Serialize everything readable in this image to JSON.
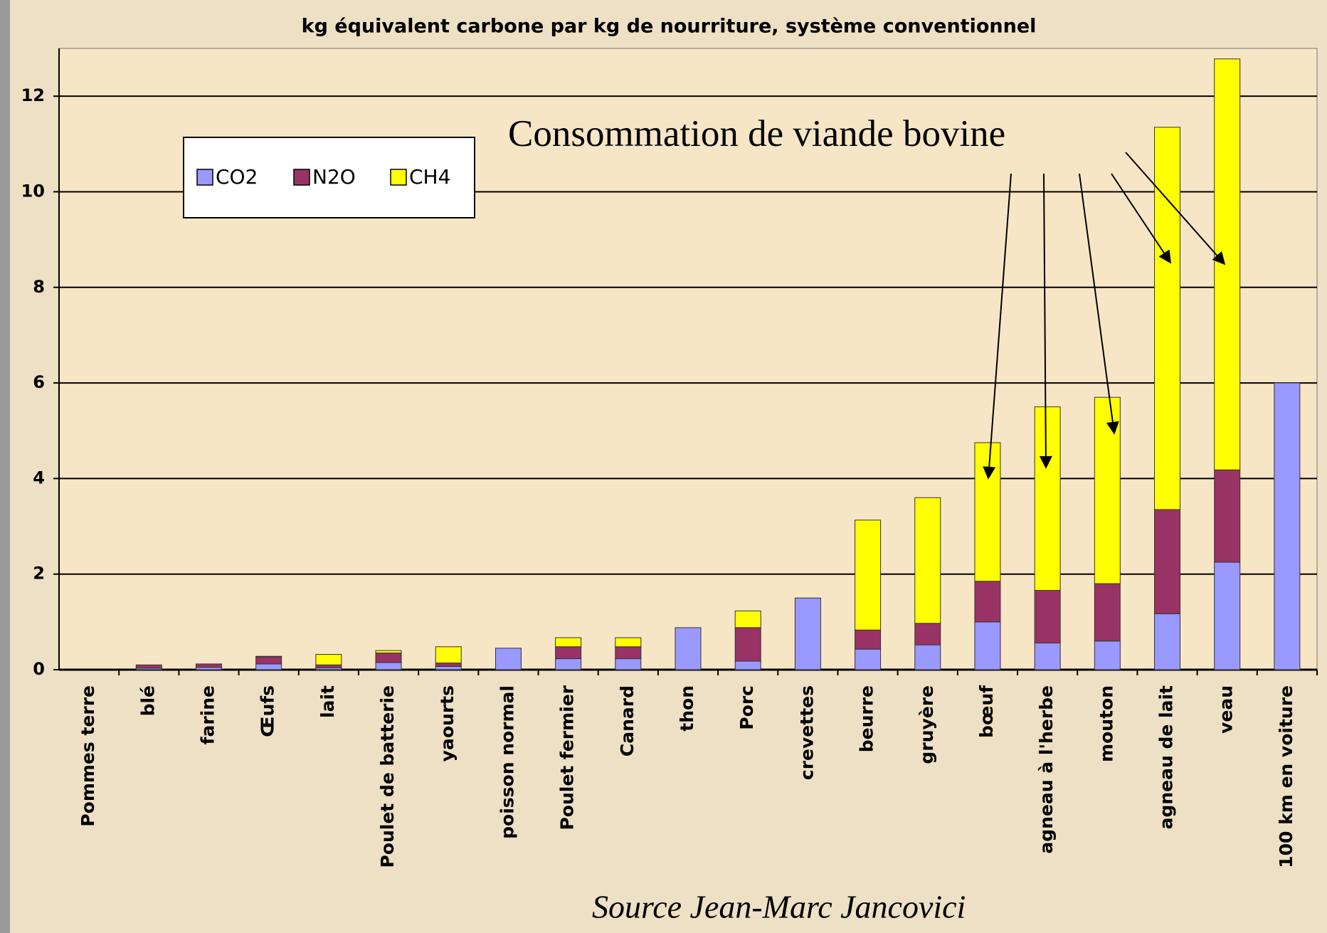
{
  "chart_data": {
    "type": "stacked_bar",
    "title": "kg équivalent carbone par kg de nourriture, système conventionnel",
    "categories": [
      "Pommes terre",
      "blé",
      "farine",
      "Œufs",
      "lait",
      "Poulet de batterie",
      "yaourts",
      "poisson normal",
      "Poulet fermier",
      "Canard",
      "thon",
      "Porc",
      "crevettes",
      "beurre",
      "gruyère",
      "bœuf",
      "agneau à l'herbe",
      "mouton",
      "agneau de lait",
      "veau",
      "100 km en voiture"
    ],
    "series": [
      {
        "name": "CO2",
        "color": "#9999ff",
        "values": [
          0,
          0.03,
          0.05,
          0.12,
          0.04,
          0.15,
          0.07,
          0.45,
          0.23,
          0.23,
          0.88,
          0.18,
          1.5,
          0.43,
          0.52,
          1.0,
          0.56,
          0.6,
          1.17,
          2.25,
          6.0
        ]
      },
      {
        "name": "N2O",
        "color": "#993366",
        "values": [
          0,
          0.07,
          0.07,
          0.15,
          0.06,
          0.2,
          0.07,
          0,
          0.25,
          0.25,
          0,
          0.7,
          0,
          0.4,
          0.45,
          0.85,
          1.1,
          1.2,
          2.18,
          1.93,
          0
        ]
      },
      {
        "name": "CH4",
        "color": "#ffff00",
        "values": [
          0,
          0,
          0,
          0.01,
          0.22,
          0.05,
          0.34,
          0,
          0.19,
          0.19,
          0,
          0.35,
          0,
          2.3,
          2.63,
          2.9,
          3.84,
          3.9,
          8.0,
          8.6,
          0
        ]
      }
    ],
    "ylim": [
      0,
      13
    ],
    "yticks": [
      0,
      2,
      4,
      6,
      8,
      10,
      12
    ],
    "grid": true,
    "annotations": [
      "Consommation de viande bovine",
      "Source Jean-Marc Jancovici"
    ]
  }
}
